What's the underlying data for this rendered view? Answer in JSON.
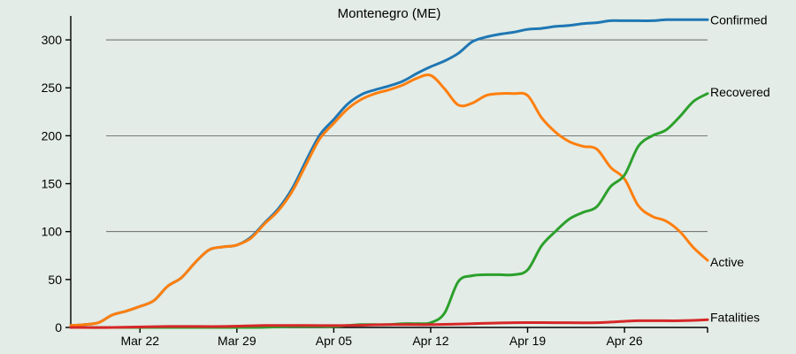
{
  "chart_data": {
    "type": "line",
    "title": "Montenegro (ME)",
    "xlabel": "",
    "ylabel": "",
    "x_start": "2020-03-17",
    "x_end": "2020-05-02",
    "x_ticks": [
      {
        "date": "2020-03-22",
        "label": "Mar 22"
      },
      {
        "date": "2020-03-29",
        "label": "Mar 29"
      },
      {
        "date": "2020-04-05",
        "label": "Apr 05"
      },
      {
        "date": "2020-04-12",
        "label": "Apr 12"
      },
      {
        "date": "2020-04-19",
        "label": "Apr 19"
      },
      {
        "date": "2020-04-26",
        "label": "Apr 26"
      }
    ],
    "ylim": [
      0,
      325
    ],
    "y_ticks": [
      0,
      50,
      100,
      150,
      200,
      250,
      300
    ],
    "gridlines": [
      100,
      200,
      300
    ],
    "series": [
      {
        "name": "Confirmed",
        "color": "#1f77b4",
        "x": [
          "2020-03-17",
          "2020-03-18",
          "2020-03-19",
          "2020-03-20",
          "2020-03-21",
          "2020-03-22",
          "2020-03-23",
          "2020-03-24",
          "2020-03-25",
          "2020-03-26",
          "2020-03-27",
          "2020-03-28",
          "2020-03-29",
          "2020-03-30",
          "2020-03-31",
          "2020-04-01",
          "2020-04-02",
          "2020-04-03",
          "2020-04-04",
          "2020-04-05",
          "2020-04-06",
          "2020-04-07",
          "2020-04-08",
          "2020-04-09",
          "2020-04-10",
          "2020-04-11",
          "2020-04-12",
          "2020-04-13",
          "2020-04-14",
          "2020-04-15",
          "2020-04-16",
          "2020-04-17",
          "2020-04-18",
          "2020-04-19",
          "2020-04-20",
          "2020-04-21",
          "2020-04-22",
          "2020-04-23",
          "2020-04-24",
          "2020-04-25",
          "2020-04-26",
          "2020-04-27",
          "2020-04-28",
          "2020-04-29",
          "2020-04-30",
          "2020-05-01",
          "2020-05-02"
        ],
        "values": [
          2,
          3,
          5,
          13,
          17,
          22,
          28,
          43,
          52,
          68,
          81,
          84,
          86,
          94,
          109,
          124,
          145,
          174,
          201,
          217,
          233,
          243,
          248,
          252,
          257,
          265,
          272,
          278,
          286,
          298,
          303,
          306,
          308,
          311,
          312,
          314,
          315,
          317,
          318,
          320,
          320,
          320,
          320,
          321,
          321,
          321,
          321
        ]
      },
      {
        "name": "Recovered",
        "color": "#2ca02c",
        "x": [
          "2020-03-17",
          "2020-03-20",
          "2020-03-25",
          "2020-03-30",
          "2020-04-02",
          "2020-04-04",
          "2020-04-05",
          "2020-04-06",
          "2020-04-07",
          "2020-04-08",
          "2020-04-09",
          "2020-04-10",
          "2020-04-11",
          "2020-04-12",
          "2020-04-13",
          "2020-04-14",
          "2020-04-15",
          "2020-04-16",
          "2020-04-17",
          "2020-04-18",
          "2020-04-19",
          "2020-04-20",
          "2020-04-21",
          "2020-04-22",
          "2020-04-23",
          "2020-04-24",
          "2020-04-25",
          "2020-04-26",
          "2020-04-27",
          "2020-04-28",
          "2020-04-29",
          "2020-04-30",
          "2020-05-01",
          "2020-05-02"
        ],
        "values": [
          0,
          0,
          0,
          0,
          1,
          1,
          1,
          2,
          3,
          3,
          3,
          4,
          4,
          5,
          15,
          48,
          54,
          55,
          55,
          55,
          60,
          85,
          100,
          113,
          120,
          126,
          147,
          159,
          189,
          200,
          206,
          220,
          236,
          244
        ]
      },
      {
        "name": "Active",
        "color": "#ff7f0e",
        "x": [
          "2020-03-17",
          "2020-03-18",
          "2020-03-19",
          "2020-03-20",
          "2020-03-21",
          "2020-03-22",
          "2020-03-23",
          "2020-03-24",
          "2020-03-25",
          "2020-03-26",
          "2020-03-27",
          "2020-03-28",
          "2020-03-29",
          "2020-03-30",
          "2020-03-31",
          "2020-04-01",
          "2020-04-02",
          "2020-04-03",
          "2020-04-04",
          "2020-04-05",
          "2020-04-06",
          "2020-04-07",
          "2020-04-08",
          "2020-04-09",
          "2020-04-10",
          "2020-04-11",
          "2020-04-12",
          "2020-04-13",
          "2020-04-14",
          "2020-04-15",
          "2020-04-16",
          "2020-04-17",
          "2020-04-18",
          "2020-04-19",
          "2020-04-20",
          "2020-04-21",
          "2020-04-22",
          "2020-04-23",
          "2020-04-24",
          "2020-04-25",
          "2020-04-26",
          "2020-04-27",
          "2020-04-28",
          "2020-04-29",
          "2020-04-30",
          "2020-05-01",
          "2020-05-02"
        ],
        "values": [
          2,
          3,
          5,
          13,
          17,
          22,
          28,
          43,
          52,
          68,
          81,
          84,
          86,
          93,
          108,
          122,
          142,
          170,
          197,
          213,
          228,
          238,
          244,
          248,
          253,
          260,
          263,
          249,
          232,
          234,
          242,
          244,
          244,
          242,
          219,
          204,
          194,
          189,
          186,
          167,
          155,
          127,
          116,
          111,
          100,
          83,
          70
        ]
      },
      {
        "name": "Fatalities",
        "color": "#d62728",
        "x": [
          "2020-03-17",
          "2020-03-20",
          "2020-03-24",
          "2020-03-28",
          "2020-03-31",
          "2020-04-03",
          "2020-04-06",
          "2020-04-09",
          "2020-04-12",
          "2020-04-15",
          "2020-04-18",
          "2020-04-21",
          "2020-04-24",
          "2020-04-27",
          "2020-04-30",
          "2020-05-02"
        ],
        "values": [
          0,
          0,
          1,
          1,
          2,
          2,
          2,
          3,
          3,
          4,
          5,
          5,
          5,
          7,
          7,
          8
        ]
      }
    ]
  }
}
